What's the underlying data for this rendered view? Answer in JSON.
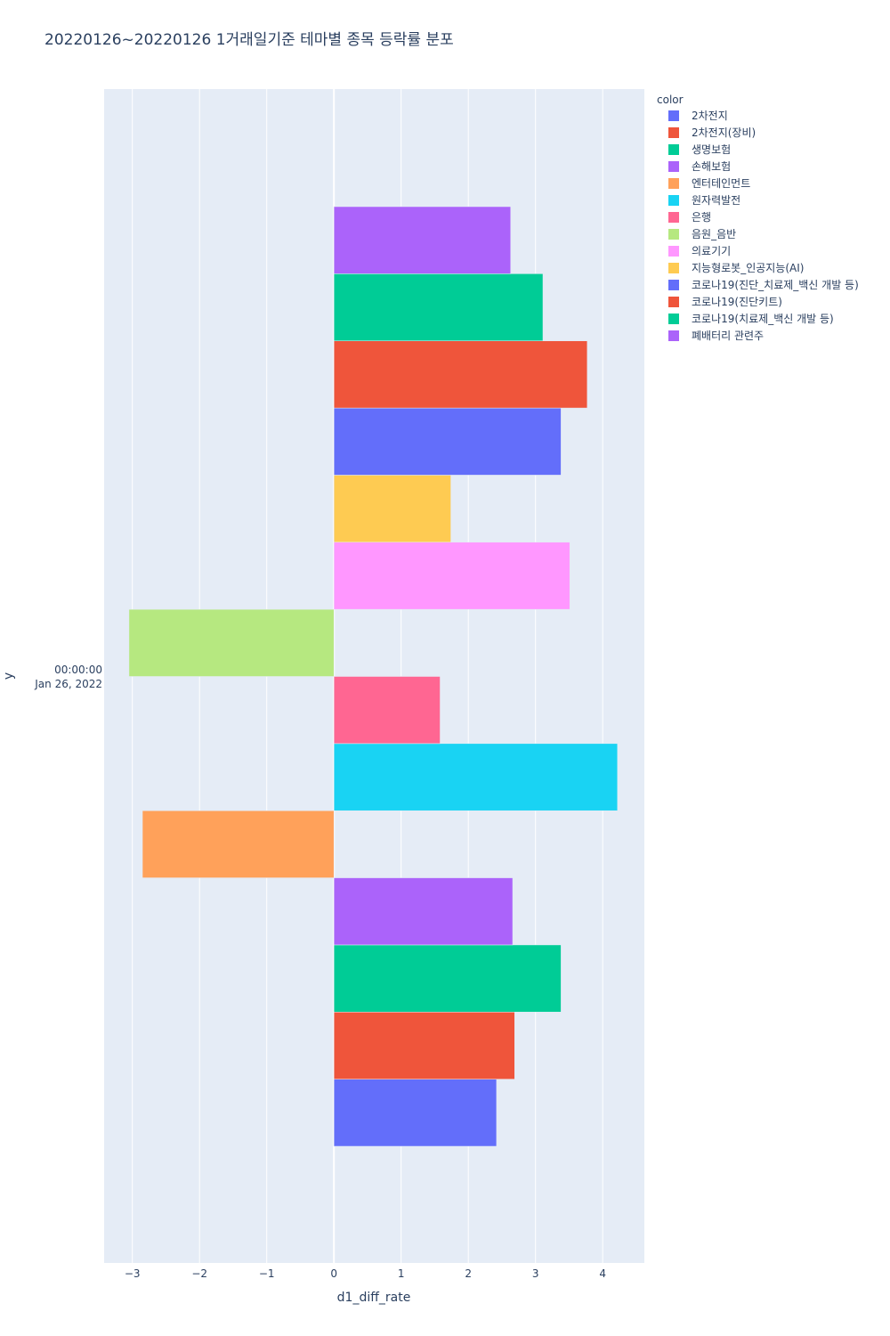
{
  "chart_data": {
    "type": "bar",
    "orientation": "horizontal",
    "barmode": "group",
    "title": "20220126~20220126 1거래일기준 테마별 종목 등락률 분포",
    "xlabel": "d1_diff_rate",
    "ylabel": "y",
    "xlim": [
      -3.42,
      4.62
    ],
    "xticks": [
      -3,
      -2,
      -1,
      0,
      1,
      2,
      3,
      4
    ],
    "xtick_labels": [
      "−3",
      "−2",
      "−1",
      "0",
      "1",
      "2",
      "3",
      "4"
    ],
    "y_category_lines": [
      "00:00:00",
      "Jan 26, 2022"
    ],
    "legend_title": "color",
    "legend_position": "top-right",
    "series": [
      {
        "name": "2차전지",
        "color": "#636efa",
        "value": 2.42
      },
      {
        "name": "2차전지(장비)",
        "color": "#EF553B",
        "value": 2.69
      },
      {
        "name": "생명보험",
        "color": "#00cc96",
        "value": 3.38
      },
      {
        "name": "손해보험",
        "color": "#ab63fa",
        "value": 2.66
      },
      {
        "name": "엔터테인먼트",
        "color": "#FFA15A",
        "value": -2.85
      },
      {
        "name": "원자력발전",
        "color": "#19d3f3",
        "value": 4.22
      },
      {
        "name": "은행",
        "color": "#FF6692",
        "value": 1.58
      },
      {
        "name": "음원_음반",
        "color": "#B6E880",
        "value": -3.05
      },
      {
        "name": "의료기기",
        "color": "#FF97FF",
        "value": 3.51
      },
      {
        "name": "지능형로봇_인공지능(AI)",
        "color": "#FECB52",
        "value": 1.74
      },
      {
        "name": "코로나19(진단_치료제_백신 개발 등)",
        "color": "#636efa",
        "value": 3.38
      },
      {
        "name": "코로나19(진단키트)",
        "color": "#EF553B",
        "value": 3.77
      },
      {
        "name": "코로나19(치료제_백신 개발 등)",
        "color": "#00cc96",
        "value": 3.11
      },
      {
        "name": "폐배터리 관련주",
        "color": "#ab63fa",
        "value": 2.63
      }
    ]
  }
}
